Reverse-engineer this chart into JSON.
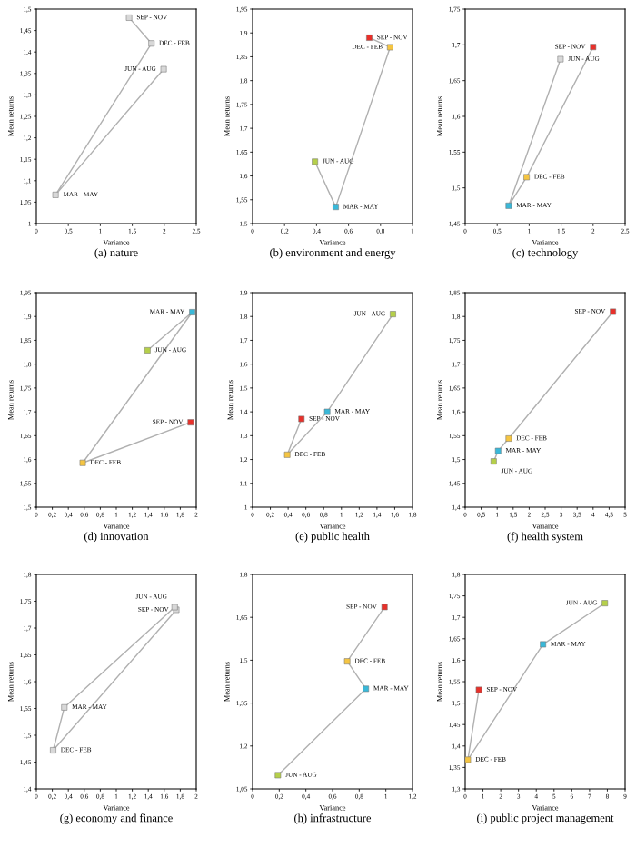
{
  "chart_data": [
    {
      "type": "line",
      "title": "(a) nature",
      "xlabel": "Variance",
      "ylabel": "Mean returns",
      "marker": "square",
      "xlim": [
        0,
        2.5
      ],
      "xticks": [
        0,
        {
          "value": 0.5,
          "label": "0,5"
        },
        1,
        {
          "value": 1.5,
          "label": "1,5"
        },
        2,
        {
          "value": 2.5,
          "label": "2,5"
        }
      ],
      "ylim": [
        1.0,
        1.5
      ],
      "yticks": [
        {
          "value": 1.0,
          "label": "1"
        },
        {
          "value": 1.05,
          "label": "1,05"
        },
        {
          "value": 1.1,
          "label": "1,1"
        },
        {
          "value": 1.15,
          "label": "1,15"
        },
        {
          "value": 1.2,
          "label": "1,2"
        },
        {
          "value": 1.25,
          "label": "1,25"
        },
        {
          "value": 1.3,
          "label": "1,3"
        },
        {
          "value": 1.35,
          "label": "1,35"
        },
        {
          "value": 1.4,
          "label": "1,4"
        },
        {
          "value": 1.45,
          "label": "1,45"
        },
        {
          "value": 1.5,
          "label": "1,5"
        }
      ],
      "series": [
        {
          "color": "#b0b0b0",
          "colors": [
            "#d8d8d8",
            "#d8d8d8",
            "#d8d8d8",
            "#d8d8d8"
          ],
          "x": [
            1.45,
            1.8,
            0.3,
            1.99
          ],
          "values": [
            1.48,
            1.42,
            1.067,
            1.36
          ]
        }
      ],
      "annotations": [
        {
          "text": "SEP - NOV",
          "x": 1.45,
          "y": 1.48
        },
        {
          "text": "DEC - FEB",
          "x": 1.8,
          "y": 1.42
        },
        {
          "text": "MAR - MAY",
          "x": 0.3,
          "y": 1.067
        },
        {
          "text": "JUN - AUG",
          "x": 1.99,
          "y": 1.36
        }
      ]
    },
    {
      "type": "line",
      "title": "(b) environment and energy",
      "xlabel": "Variance",
      "ylabel": "Mean returns",
      "marker": "square",
      "xlim": [
        0,
        1
      ],
      "xticks": [
        0,
        {
          "value": 0.2,
          "label": "0,2"
        },
        {
          "value": 0.4,
          "label": "0,4"
        },
        {
          "value": 0.6,
          "label": "0,6"
        },
        {
          "value": 0.8,
          "label": "0,8"
        },
        1
      ],
      "ylim": [
        1.5,
        1.95
      ],
      "yticks": [
        {
          "value": 1.5,
          "label": "1,5"
        },
        {
          "value": 1.55,
          "label": "1,55"
        },
        {
          "value": 1.6,
          "label": "1,6"
        },
        {
          "value": 1.65,
          "label": "1,65"
        },
        {
          "value": 1.7,
          "label": "1,7"
        },
        {
          "value": 1.75,
          "label": "1,75"
        },
        {
          "value": 1.8,
          "label": "1,8"
        },
        {
          "value": 1.85,
          "label": "1,85"
        },
        {
          "value": 1.9,
          "label": "1,9"
        },
        {
          "value": 1.95,
          "label": "1,95"
        }
      ],
      "series": [
        {
          "color": "#b0b0b0",
          "colors": [
            "#e8302a",
            "#f5c542",
            "#3ab8d8",
            "#b5cf4a"
          ],
          "x": [
            0.73,
            0.86,
            0.52,
            0.39
          ],
          "values": [
            1.89,
            1.87,
            1.535,
            1.63
          ]
        }
      ],
      "annotations": [
        {
          "text": "SEP - NOV",
          "x": 0.73,
          "y": 1.89
        },
        {
          "text": "DEC - FEB",
          "x": 0.86,
          "y": 1.87
        },
        {
          "text": "MAR - MAY",
          "x": 0.52,
          "y": 1.535
        },
        {
          "text": "JUN - AUG",
          "x": 0.39,
          "y": 1.63
        }
      ]
    },
    {
      "type": "line",
      "title": "(c) technology",
      "xlabel": "Variance",
      "ylabel": "Mean returns",
      "marker": "square",
      "xlim": [
        0,
        2.5
      ],
      "xticks": [
        0,
        {
          "value": 0.5,
          "label": "0,5"
        },
        1,
        {
          "value": 1.5,
          "label": "1,5"
        },
        2,
        {
          "value": 2.5,
          "label": "2,5"
        }
      ],
      "ylim": [
        1.45,
        1.75
      ],
      "yticks": [
        {
          "value": 1.45,
          "label": "1,45"
        },
        {
          "value": 1.5,
          "label": "1,5"
        },
        {
          "value": 1.55,
          "label": "1,55"
        },
        {
          "value": 1.6,
          "label": "1,6"
        },
        {
          "value": 1.65,
          "label": "1,65"
        },
        {
          "value": 1.7,
          "label": "1,7"
        },
        {
          "value": 1.75,
          "label": "1,75"
        }
      ],
      "series": [
        {
          "color": "#b0b0b0",
          "colors": [
            "#e8302a",
            "#f5c542",
            "#3ab8d8",
            "#d8d8d8"
          ],
          "x": [
            2.0,
            0.96,
            0.68,
            1.49
          ],
          "values": [
            1.697,
            1.515,
            1.475,
            1.68
          ]
        }
      ],
      "annotations": [
        {
          "text": "SEP - NOV",
          "x": 2.0,
          "y": 1.697
        },
        {
          "text": "DEC - FEB",
          "x": 0.96,
          "y": 1.515
        },
        {
          "text": "MAR - MAY",
          "x": 0.68,
          "y": 1.475
        },
        {
          "text": "JUN - AUG",
          "x": 1.49,
          "y": 1.68
        }
      ]
    },
    {
      "type": "line",
      "title": "(d) innovation",
      "xlabel": "Variance",
      "ylabel": "Mean returns",
      "marker": "square",
      "xlim": [
        0,
        2
      ],
      "xticks": [
        0,
        {
          "value": 0.2,
          "label": "0,2"
        },
        {
          "value": 0.4,
          "label": "0,4"
        },
        {
          "value": 0.6,
          "label": "0,6"
        },
        {
          "value": 0.8,
          "label": "0,8"
        },
        1,
        {
          "value": 1.2,
          "label": "1,2"
        },
        {
          "value": 1.4,
          "label": "1,4"
        },
        {
          "value": 1.6,
          "label": "1,6"
        },
        {
          "value": 1.8,
          "label": "1,8"
        },
        2
      ],
      "ylim": [
        1.5,
        1.95
      ],
      "yticks": [
        {
          "value": 1.5,
          "label": "1,5"
        },
        {
          "value": 1.55,
          "label": "1,55"
        },
        {
          "value": 1.6,
          "label": "1,6"
        },
        {
          "value": 1.65,
          "label": "1,65"
        },
        {
          "value": 1.7,
          "label": "1,7"
        },
        {
          "value": 1.75,
          "label": "1,75"
        },
        {
          "value": 1.8,
          "label": "1,8"
        },
        {
          "value": 1.85,
          "label": "1,85"
        },
        {
          "value": 1.9,
          "label": "1,9"
        },
        {
          "value": 1.95,
          "label": "1,95"
        }
      ],
      "series": [
        {
          "color": "#b0b0b0",
          "colors": [
            "#e8302a",
            "#f5c542",
            "#3ab8d8",
            "#b5cf4a"
          ],
          "x": [
            1.93,
            0.58,
            1.95,
            1.39
          ],
          "values": [
            1.678,
            1.593,
            1.909,
            1.829
          ]
        }
      ],
      "annotations": [
        {
          "text": "SEP - NOV",
          "x": 1.93,
          "y": 1.678
        },
        {
          "text": "DEC - FEB",
          "x": 0.58,
          "y": 1.593
        },
        {
          "text": "MAR - MAY",
          "x": 1.95,
          "y": 1.909
        },
        {
          "text": "JUN - AUG",
          "x": 1.39,
          "y": 1.829
        }
      ]
    },
    {
      "type": "line",
      "title": "(e) public health",
      "xlabel": "Variance",
      "ylabel": "Mean returns",
      "marker": "square",
      "xlim": [
        0,
        1.8
      ],
      "xticks": [
        0,
        {
          "value": 0.2,
          "label": "0,2"
        },
        {
          "value": 0.4,
          "label": "0,4"
        },
        {
          "value": 0.6,
          "label": "0,6"
        },
        {
          "value": 0.8,
          "label": "0,8"
        },
        1,
        {
          "value": 1.2,
          "label": "1,2"
        },
        {
          "value": 1.4,
          "label": "1,4"
        },
        {
          "value": 1.6,
          "label": "1,6"
        },
        {
          "value": 1.8,
          "label": "1,8"
        }
      ],
      "ylim": [
        1.0,
        1.9
      ],
      "yticks": [
        {
          "value": 1.0,
          "label": "1"
        },
        {
          "value": 1.1,
          "label": "1,1"
        },
        {
          "value": 1.2,
          "label": "1,2"
        },
        {
          "value": 1.3,
          "label": "1,3"
        },
        {
          "value": 1.4,
          "label": "1,4"
        },
        {
          "value": 1.5,
          "label": "1,5"
        },
        {
          "value": 1.6,
          "label": "1,6"
        },
        {
          "value": 1.7,
          "label": "1,7"
        },
        {
          "value": 1.8,
          "label": "1,8"
        },
        {
          "value": 1.9,
          "label": "1,9"
        }
      ],
      "series": [
        {
          "color": "#b0b0b0",
          "colors": [
            "#e8302a",
            "#f5c542",
            "#3ab8d8",
            "#b5cf4a"
          ],
          "x": [
            0.55,
            0.39,
            0.84,
            1.58
          ],
          "values": [
            1.37,
            1.22,
            1.4,
            1.81
          ]
        }
      ],
      "annotations": [
        {
          "text": "SEP - NOV",
          "x": 0.55,
          "y": 1.37
        },
        {
          "text": "DEC - FEB",
          "x": 0.39,
          "y": 1.22
        },
        {
          "text": "MAR - MAY",
          "x": 0.84,
          "y": 1.4
        },
        {
          "text": "JUN - AUG",
          "x": 1.58,
          "y": 1.81
        }
      ]
    },
    {
      "type": "line",
      "title": "(f) health system",
      "xlabel": "Variance",
      "ylabel": "Mean returns",
      "marker": "square",
      "xlim": [
        0,
        5
      ],
      "xticks": [
        0,
        {
          "value": 0.5,
          "label": "0,5"
        },
        1,
        {
          "value": 1.5,
          "label": "1,5"
        },
        2,
        {
          "value": 2.5,
          "label": "2,5"
        },
        3,
        {
          "value": 3.5,
          "label": "3,5"
        },
        4,
        {
          "value": 4.5,
          "label": "4,5"
        },
        5
      ],
      "ylim": [
        1.4,
        1.85
      ],
      "yticks": [
        {
          "value": 1.4,
          "label": "1,4"
        },
        {
          "value": 1.45,
          "label": "1,45"
        },
        {
          "value": 1.5,
          "label": "1,5"
        },
        {
          "value": 1.55,
          "label": "1,55"
        },
        {
          "value": 1.6,
          "label": "1,6"
        },
        {
          "value": 1.65,
          "label": "1,65"
        },
        {
          "value": 1.7,
          "label": "1,7"
        },
        {
          "value": 1.75,
          "label": "1,75"
        },
        {
          "value": 1.8,
          "label": "1,8"
        },
        {
          "value": 1.85,
          "label": "1,85"
        }
      ],
      "series": [
        {
          "color": "#b0b0b0",
          "colors": [
            "#e8302a",
            "#f5c542",
            "#3ab8d8",
            "#b5cf4a"
          ],
          "x": [
            4.62,
            1.36,
            1.03,
            0.89
          ],
          "values": [
            1.81,
            1.544,
            1.518,
            1.496
          ]
        }
      ],
      "annotations": [
        {
          "text": "SEP - NOV",
          "x": 4.62,
          "y": 1.81
        },
        {
          "text": "DEC - FEB",
          "x": 1.36,
          "y": 1.544
        },
        {
          "text": "MAR - MAY",
          "x": 1.03,
          "y": 1.518
        },
        {
          "text": "JUN - AUG",
          "x": 0.89,
          "y": 1.496
        }
      ]
    },
    {
      "type": "line",
      "title": "(g) economy and finance",
      "xlabel": "Variance",
      "ylabel": "Mean returns",
      "marker": "square",
      "xlim": [
        0,
        2
      ],
      "xticks": [
        0,
        {
          "value": 0.2,
          "label": "0,2"
        },
        {
          "value": 0.4,
          "label": "0,4"
        },
        {
          "value": 0.6,
          "label": "0,6"
        },
        {
          "value": 0.8,
          "label": "0,8"
        },
        1,
        {
          "value": 1.2,
          "label": "1,2"
        },
        {
          "value": 1.4,
          "label": "1,4"
        },
        {
          "value": 1.6,
          "label": "1,6"
        },
        {
          "value": 1.8,
          "label": "1,8"
        },
        2
      ],
      "ylim": [
        1.4,
        1.8
      ],
      "yticks": [
        {
          "value": 1.4,
          "label": "1,4"
        },
        {
          "value": 1.45,
          "label": "1,45"
        },
        {
          "value": 1.5,
          "label": "1,5"
        },
        {
          "value": 1.55,
          "label": "1,55"
        },
        {
          "value": 1.6,
          "label": "1,6"
        },
        {
          "value": 1.65,
          "label": "1,65"
        },
        {
          "value": 1.7,
          "label": "1,7"
        },
        {
          "value": 1.75,
          "label": "1,75"
        },
        {
          "value": 1.8,
          "label": "1,8"
        }
      ],
      "series": [
        {
          "color": "#b0b0b0",
          "colors": [
            "#d8d8d8",
            "#d8d8d8",
            "#d8d8d8",
            "#d8d8d8"
          ],
          "x": [
            1.75,
            0.21,
            0.35,
            1.73
          ],
          "values": [
            1.734,
            1.472,
            1.552,
            1.739
          ]
        }
      ],
      "annotations": [
        {
          "text": "SEP - NOV",
          "x": 1.75,
          "y": 1.734
        },
        {
          "text": "DEC - FEB",
          "x": 0.21,
          "y": 1.472
        },
        {
          "text": "MAR - MAY",
          "x": 0.35,
          "y": 1.552
        },
        {
          "text": "JUN - AUG",
          "x": 1.73,
          "y": 1.739
        }
      ]
    },
    {
      "type": "line",
      "title": "(h) infrastructure",
      "xlabel": "Variance",
      "ylabel": "Mean returns",
      "marker": "square",
      "xlim": [
        0,
        1.2
      ],
      "xticks": [
        0,
        {
          "value": 0.2,
          "label": "0,2"
        },
        {
          "value": 0.4,
          "label": "0,4"
        },
        {
          "value": 0.6,
          "label": "0,6"
        },
        {
          "value": 0.8,
          "label": "0,8"
        },
        1,
        {
          "value": 1.2,
          "label": "1,2"
        }
      ],
      "ylim": [
        1.05,
        1.8
      ],
      "yticks": [
        {
          "value": 1.05,
          "label": "1,05"
        },
        {
          "value": 1.2,
          "label": "1,2"
        },
        {
          "value": 1.35,
          "label": "1,35"
        },
        {
          "value": 1.5,
          "label": "1,5"
        },
        {
          "value": 1.65,
          "label": "1,65"
        },
        {
          "value": 1.8,
          "label": "1,8"
        }
      ],
      "series": [
        {
          "color": "#b0b0b0",
          "colors": [
            "#e8302a",
            "#f5c542",
            "#3ab8d8",
            "#b5cf4a"
          ],
          "x": [
            0.99,
            0.71,
            0.85,
            0.19
          ],
          "values": [
            1.686,
            1.496,
            1.4,
            1.098
          ]
        }
      ],
      "annotations": [
        {
          "text": "SEP - NOV",
          "x": 0.99,
          "y": 1.686
        },
        {
          "text": "DEC - FEB",
          "x": 0.71,
          "y": 1.496
        },
        {
          "text": "MAR - MAY",
          "x": 0.85,
          "y": 1.4
        },
        {
          "text": "JUN - AUG",
          "x": 0.19,
          "y": 1.098
        }
      ]
    },
    {
      "type": "line",
      "title": "(i) public project management",
      "xlabel": "Variance",
      "ylabel": "Mean returns",
      "marker": "square",
      "xlim": [
        0,
        9
      ],
      "xticks": [
        0,
        1,
        2,
        3,
        4,
        5,
        6,
        7,
        8,
        9
      ],
      "ylim": [
        1.3,
        1.8
      ],
      "yticks": [
        {
          "value": 1.3,
          "label": "1,3"
        },
        {
          "value": 1.35,
          "label": "1,35"
        },
        {
          "value": 1.4,
          "label": "1,4"
        },
        {
          "value": 1.45,
          "label": "1,45"
        },
        {
          "value": 1.5,
          "label": "1,5"
        },
        {
          "value": 1.55,
          "label": "1,55"
        },
        {
          "value": 1.6,
          "label": "1,6"
        },
        {
          "value": 1.65,
          "label": "1,65"
        },
        {
          "value": 1.7,
          "label": "1,7"
        },
        {
          "value": 1.75,
          "label": "1,75"
        },
        {
          "value": 1.8,
          "label": "1,8"
        }
      ],
      "series": [
        {
          "color": "#b0b0b0",
          "colors": [
            "#e8302a",
            "#f5c542",
            "#3ab8d8",
            "#b5cf4a"
          ],
          "x": [
            0.77,
            0.15,
            4.38,
            7.86
          ],
          "values": [
            1.531,
            1.368,
            1.637,
            1.733
          ]
        }
      ],
      "annotations": [
        {
          "text": "SEP - NOV",
          "x": 0.77,
          "y": 1.531
        },
        {
          "text": "DEC - FEB",
          "x": 0.15,
          "y": 1.368
        },
        {
          "text": "MAR - MAY",
          "x": 4.38,
          "y": 1.637
        },
        {
          "text": "JUN - AUG",
          "x": 7.86,
          "y": 1.733
        }
      ]
    }
  ]
}
